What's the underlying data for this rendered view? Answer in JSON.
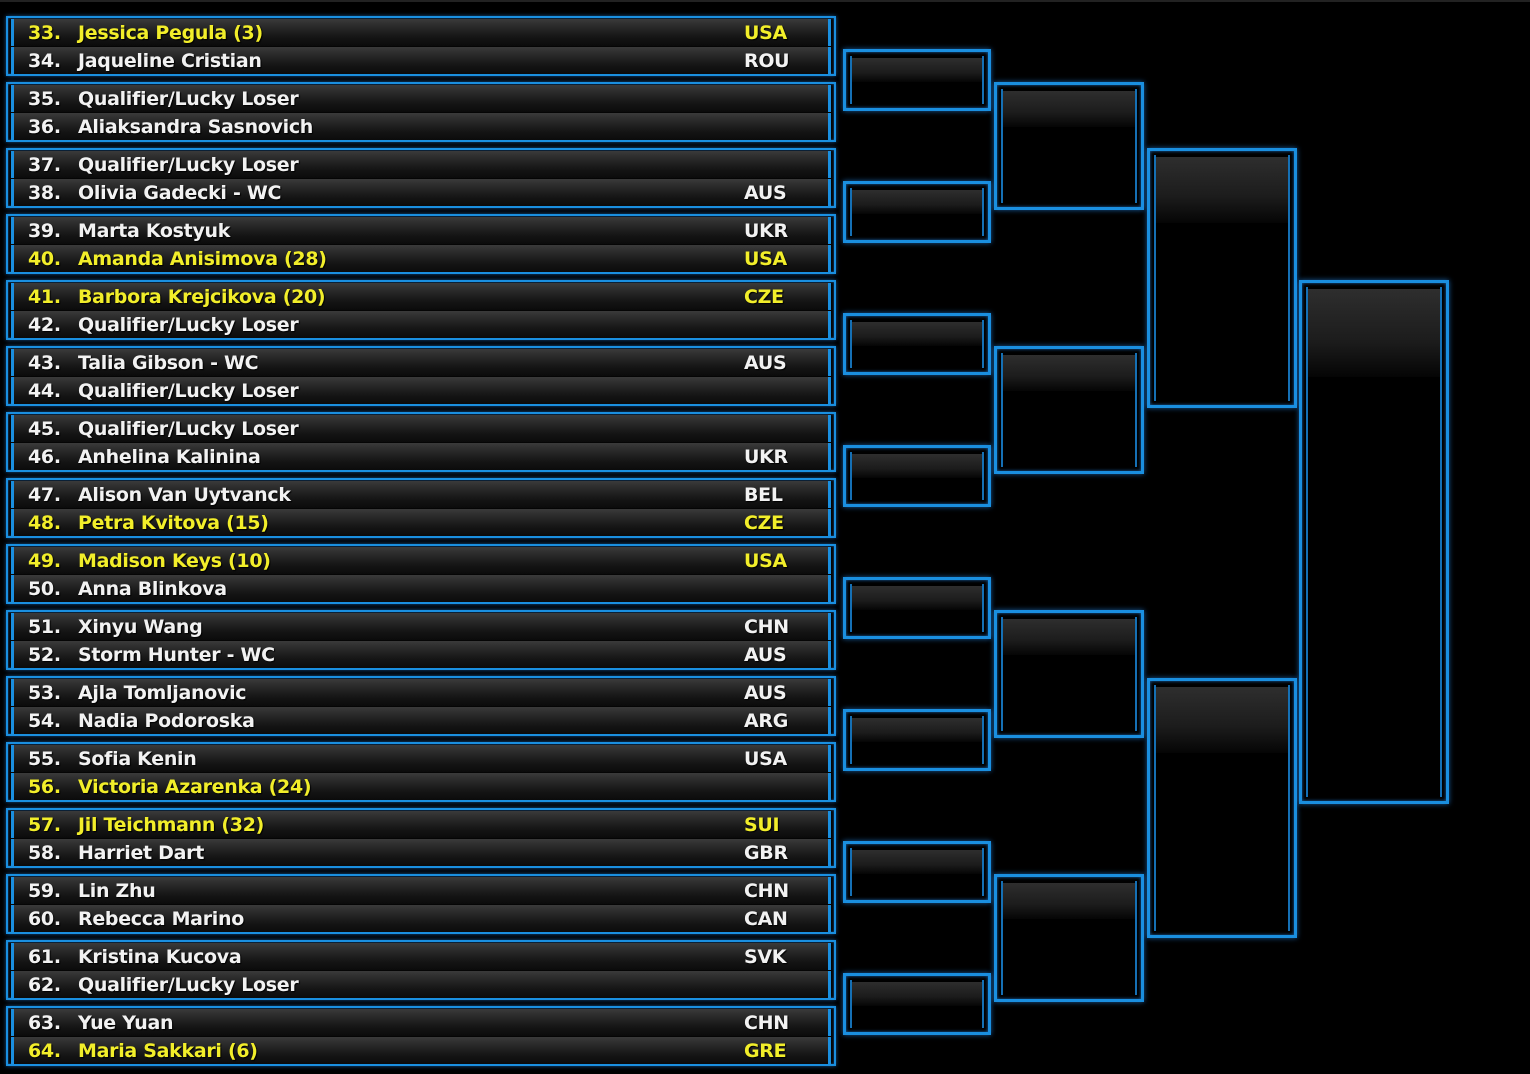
{
  "colors": {
    "accent": "#1a8fe0",
    "seeded_text": "#f2ee2a",
    "text": "#f2f2f2",
    "background": "#000000"
  },
  "players": [
    {
      "num": "33.",
      "name": "Jessica Pegula (3)",
      "country": "USA",
      "seeded": true
    },
    {
      "num": "34.",
      "name": "Jaqueline Cristian",
      "country": "ROU",
      "seeded": false
    },
    {
      "num": "35.",
      "name": "Qualifier/Lucky Loser",
      "country": "",
      "seeded": false
    },
    {
      "num": "36.",
      "name": "Aliaksandra Sasnovich",
      "country": "",
      "seeded": false
    },
    {
      "num": "37.",
      "name": "Qualifier/Lucky Loser",
      "country": "",
      "seeded": false
    },
    {
      "num": "38.",
      "name": "Olivia Gadecki - WC",
      "country": "AUS",
      "seeded": false
    },
    {
      "num": "39.",
      "name": "Marta Kostyuk",
      "country": "UKR",
      "seeded": false
    },
    {
      "num": "40.",
      "name": "Amanda Anisimova (28)",
      "country": "USA",
      "seeded": true
    },
    {
      "num": "41.",
      "name": "Barbora Krejcikova (20)",
      "country": "CZE",
      "seeded": true
    },
    {
      "num": "42.",
      "name": "Qualifier/Lucky Loser",
      "country": "",
      "seeded": false
    },
    {
      "num": "43.",
      "name": "Talia Gibson - WC",
      "country": "AUS",
      "seeded": false
    },
    {
      "num": "44.",
      "name": "Qualifier/Lucky Loser",
      "country": "",
      "seeded": false
    },
    {
      "num": "45.",
      "name": "Qualifier/Lucky Loser",
      "country": "",
      "seeded": false
    },
    {
      "num": "46.",
      "name": "Anhelina Kalinina",
      "country": "UKR",
      "seeded": false
    },
    {
      "num": "47.",
      "name": "Alison Van Uytvanck",
      "country": "BEL",
      "seeded": false
    },
    {
      "num": "48.",
      "name": "Petra Kvitova (15)",
      "country": "CZE",
      "seeded": true
    },
    {
      "num": "49.",
      "name": "Madison Keys (10)",
      "country": "USA",
      "seeded": true
    },
    {
      "num": "50.",
      "name": "Anna Blinkova",
      "country": "",
      "seeded": false
    },
    {
      "num": "51.",
      "name": "Xinyu Wang",
      "country": "CHN",
      "seeded": false
    },
    {
      "num": "52.",
      "name": "Storm Hunter - WC",
      "country": "AUS",
      "seeded": false
    },
    {
      "num": "53.",
      "name": "Ajla Tomljanovic",
      "country": "AUS",
      "seeded": false
    },
    {
      "num": "54.",
      "name": "Nadia Podoroska",
      "country": "ARG",
      "seeded": false
    },
    {
      "num": "55.",
      "name": "Sofia Kenin",
      "country": "USA",
      "seeded": false
    },
    {
      "num": "56.",
      "name": "Victoria Azarenka (24)",
      "country": "",
      "seeded": true
    },
    {
      "num": "57.",
      "name": "Jil Teichmann (32)",
      "country": "SUI",
      "seeded": true
    },
    {
      "num": "58.",
      "name": "Harriet Dart",
      "country": "GBR",
      "seeded": false
    },
    {
      "num": "59.",
      "name": "Lin Zhu",
      "country": "CHN",
      "seeded": false
    },
    {
      "num": "60.",
      "name": "Rebecca Marino",
      "country": "CAN",
      "seeded": false
    },
    {
      "num": "61.",
      "name": "Kristina Kucova",
      "country": "SVK",
      "seeded": false
    },
    {
      "num": "62.",
      "name": "Qualifier/Lucky Loser",
      "country": "",
      "seeded": false
    },
    {
      "num": "63.",
      "name": "Yue Yuan",
      "country": "CHN",
      "seeded": false
    },
    {
      "num": "64.",
      "name": "Maria Sakkari (6)",
      "country": "GRE",
      "seeded": true
    }
  ]
}
